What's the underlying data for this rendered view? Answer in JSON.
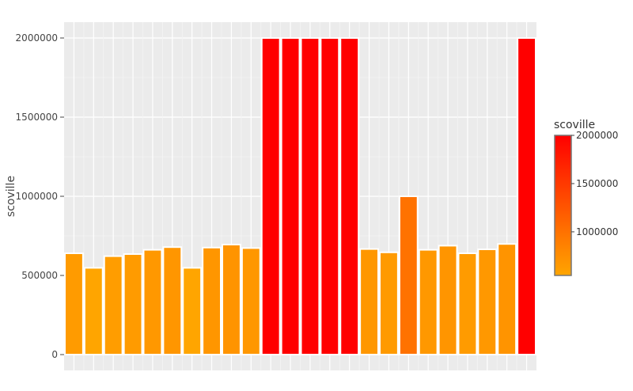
{
  "chart_data": {
    "type": "bar",
    "title": "",
    "xlabel": "",
    "ylabel": "scoville",
    "ylim": [
      0,
      2000000
    ],
    "yticks": [
      0,
      500000,
      1000000,
      1500000,
      2000000
    ],
    "ytick_labels": [
      "0",
      "500000",
      "1000000",
      "1500000",
      "2000000"
    ],
    "grid": true,
    "values": [
      640000,
      548000,
      622000,
      635000,
      662000,
      679000,
      548000,
      676000,
      695000,
      673000,
      2000000,
      2000000,
      2000000,
      2000000,
      2000000,
      667000,
      646000,
      1000000,
      662000,
      688000,
      640000,
      665000,
      699000,
      2000000
    ],
    "colorbar": {
      "title": "scoville",
      "range": [
        548000,
        2000000
      ],
      "ticks": [
        1000000,
        1500000,
        2000000
      ],
      "tick_labels": [
        "1000000",
        "1500000",
        "2000000"
      ],
      "colors": [
        "#ffa500",
        "#ff0000"
      ],
      "placement": "right"
    }
  }
}
